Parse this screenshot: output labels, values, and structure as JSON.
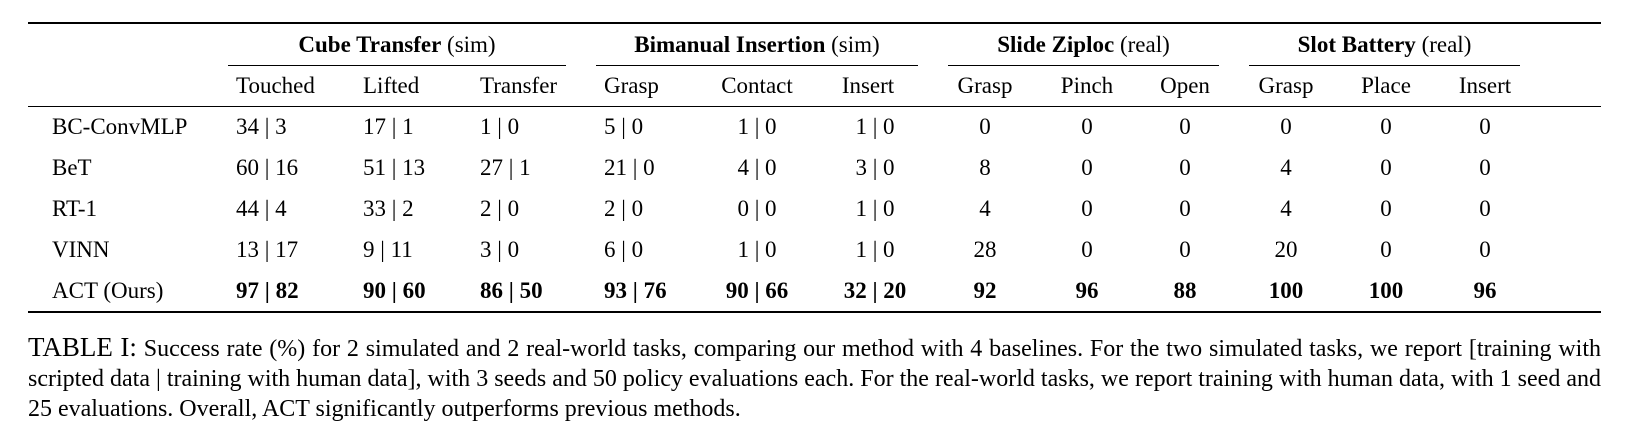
{
  "table": {
    "groups": [
      {
        "name": "Cube Transfer",
        "tag": "(sim)"
      },
      {
        "name": "Bimanual Insertion",
        "tag": "(sim)"
      },
      {
        "name": "Slide Ziploc",
        "tag": "(real)"
      },
      {
        "name": "Slot Battery",
        "tag": "(real)"
      }
    ],
    "columns": [
      "Touched",
      "Lifted",
      "Transfer",
      "Grasp",
      "Contact",
      "Insert",
      "Grasp",
      "Pinch",
      "Open",
      "Grasp",
      "Place",
      "Insert"
    ],
    "rows": [
      {
        "method": "BC-ConvMLP",
        "cells": [
          "34 | 3",
          "17 | 1",
          "1 | 0",
          "5 | 0",
          "1 | 0",
          "1 | 0",
          "0",
          "0",
          "0",
          "0",
          "0",
          "0"
        ]
      },
      {
        "method": "BeT",
        "cells": [
          "60 | 16",
          "51 | 13",
          "27 | 1",
          "21 | 0",
          "4 | 0",
          "3 | 0",
          "8",
          "0",
          "0",
          "4",
          "0",
          "0"
        ]
      },
      {
        "method": "RT-1",
        "cells": [
          "44 | 4",
          "33 | 2",
          "2 | 0",
          "2 | 0",
          "0 | 0",
          "1 | 0",
          "4",
          "0",
          "0",
          "4",
          "0",
          "0"
        ]
      },
      {
        "method": "VINN",
        "cells": [
          "13 | 17",
          "9 | 11",
          "3 | 0",
          "6 | 0",
          "1 | 0",
          "1 | 0",
          "28",
          "0",
          "0",
          "20",
          "0",
          "0"
        ]
      },
      {
        "method": "ACT (Ours)",
        "cells": [
          "97 | 82",
          "90 | 60",
          "86 | 50",
          "93 | 76",
          "90 | 66",
          "32 | 20",
          "92",
          "96",
          "88",
          "100",
          "100",
          "96"
        ]
      }
    ]
  },
  "caption": {
    "label": "TABLE I:",
    "text": "Success rate (%) for 2 simulated and 2 real-world tasks, comparing our method with 4 baselines. For the two simulated tasks, we report [training with scripted data | training with human data], with 3 seeds and 50 policy evaluations each. For the real-world tasks, we report training with human data, with 1 seed and 25 evaluations. Overall, ACT significantly outperforms previous methods."
  }
}
